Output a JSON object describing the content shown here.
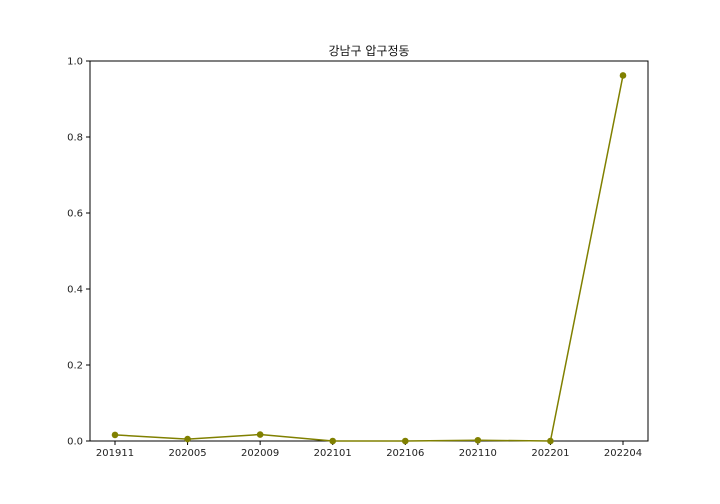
{
  "chart_data": {
    "type": "line",
    "title": "강남구 압구정동",
    "xlabel": "",
    "ylabel": "",
    "categories": [
      "201911",
      "202005",
      "202009",
      "202101",
      "202106",
      "202110",
      "202201",
      "202204"
    ],
    "series": [
      {
        "values": [
          0.016,
          0.005,
          0.017,
          0.0,
          0.0,
          0.002,
          0.0,
          0.962
        ],
        "color": "#808000"
      }
    ],
    "ylim": [
      0,
      1.0
    ],
    "yticks": [
      "0.0",
      "0.2",
      "0.4",
      "0.6",
      "0.8",
      "1.0"
    ],
    "grid": false,
    "legend": "none"
  }
}
